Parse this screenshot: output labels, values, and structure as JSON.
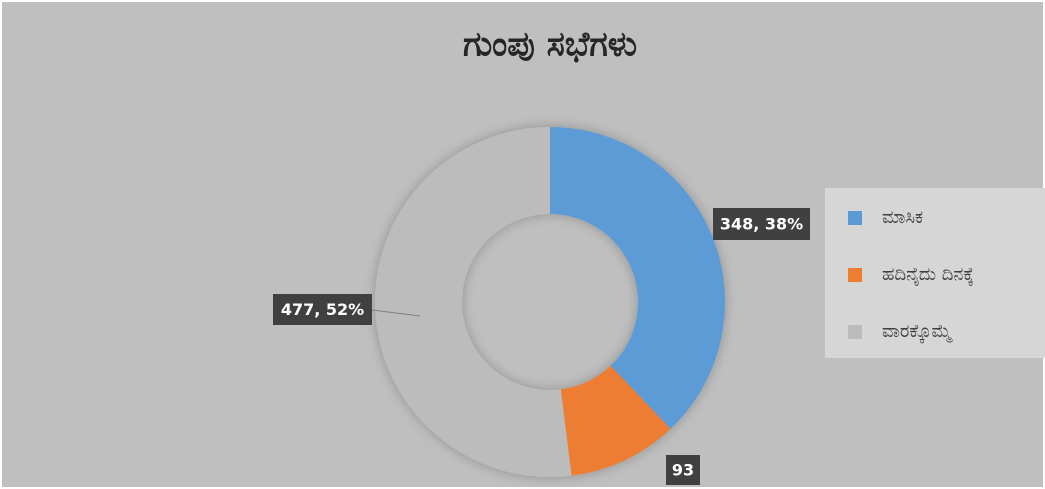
{
  "chart_data": {
    "type": "donut",
    "title": "ಗುಂಪು ಸಭೆಗಳು",
    "categories": [
      "ಮಾಸಿಕ",
      "ಹದಿನೈದು ದಿನಕ್ಕೆ",
      "ವಾರಕ್ಕೊಮ್ಮೆ"
    ],
    "values": [
      348,
      93,
      477
    ],
    "value_labels": [
      "348, 38%",
      "93",
      "477, 52%"
    ],
    "colors": [
      "#5b9bd5",
      "#ed7d31",
      "#bcbcbc"
    ],
    "legend": "right"
  }
}
